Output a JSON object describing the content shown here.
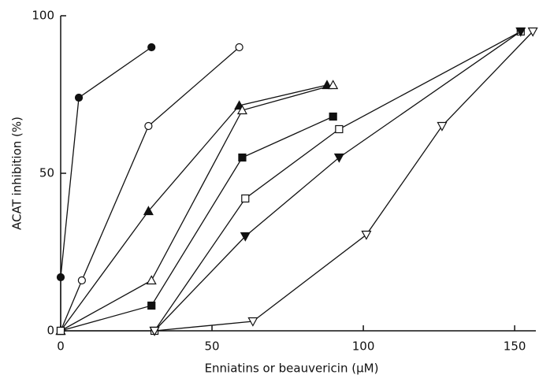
{
  "chart_data": {
    "type": "line",
    "xlabel": "Enniatins or beauvericin (μM)",
    "ylabel": "ACAT inhibition (%)",
    "xlim": [
      0,
      157
    ],
    "ylim": [
      0,
      100
    ],
    "xticks": [
      0,
      50,
      100,
      150
    ],
    "yticks": [
      0,
      50,
      100
    ],
    "color": "#111111",
    "series": [
      {
        "marker": "circle-filled",
        "x": [
          0,
          0,
          6,
          30
        ],
        "y": [
          0,
          17,
          74,
          90
        ]
      },
      {
        "marker": "circle-open",
        "x": [
          0,
          7,
          29,
          59
        ],
        "y": [
          0,
          16,
          65,
          90
        ]
      },
      {
        "marker": "triangle-filled",
        "x": [
          0,
          29,
          59,
          88
        ],
        "y": [
          0,
          38,
          71.5,
          78
        ]
      },
      {
        "marker": "triangle-open",
        "x": [
          0,
          30,
          60,
          90
        ],
        "y": [
          0,
          16,
          70,
          78
        ]
      },
      {
        "marker": "square-filled",
        "x": [
          0,
          30,
          60,
          90
        ],
        "y": [
          0,
          8,
          55,
          68
        ]
      },
      {
        "marker": "square-open",
        "x": [
          0,
          31,
          61,
          92,
          152
        ],
        "y": [
          0,
          0,
          42,
          64,
          95
        ]
      },
      {
        "marker": "invtriangle-filled",
        "x": [
          31,
          61,
          92,
          152
        ],
        "y": [
          0,
          30,
          55,
          95
        ]
      },
      {
        "marker": "invtriangle-open",
        "x": [
          31,
          63.5,
          101,
          126,
          156
        ],
        "y": [
          0,
          3,
          30.5,
          65,
          95
        ]
      }
    ]
  }
}
